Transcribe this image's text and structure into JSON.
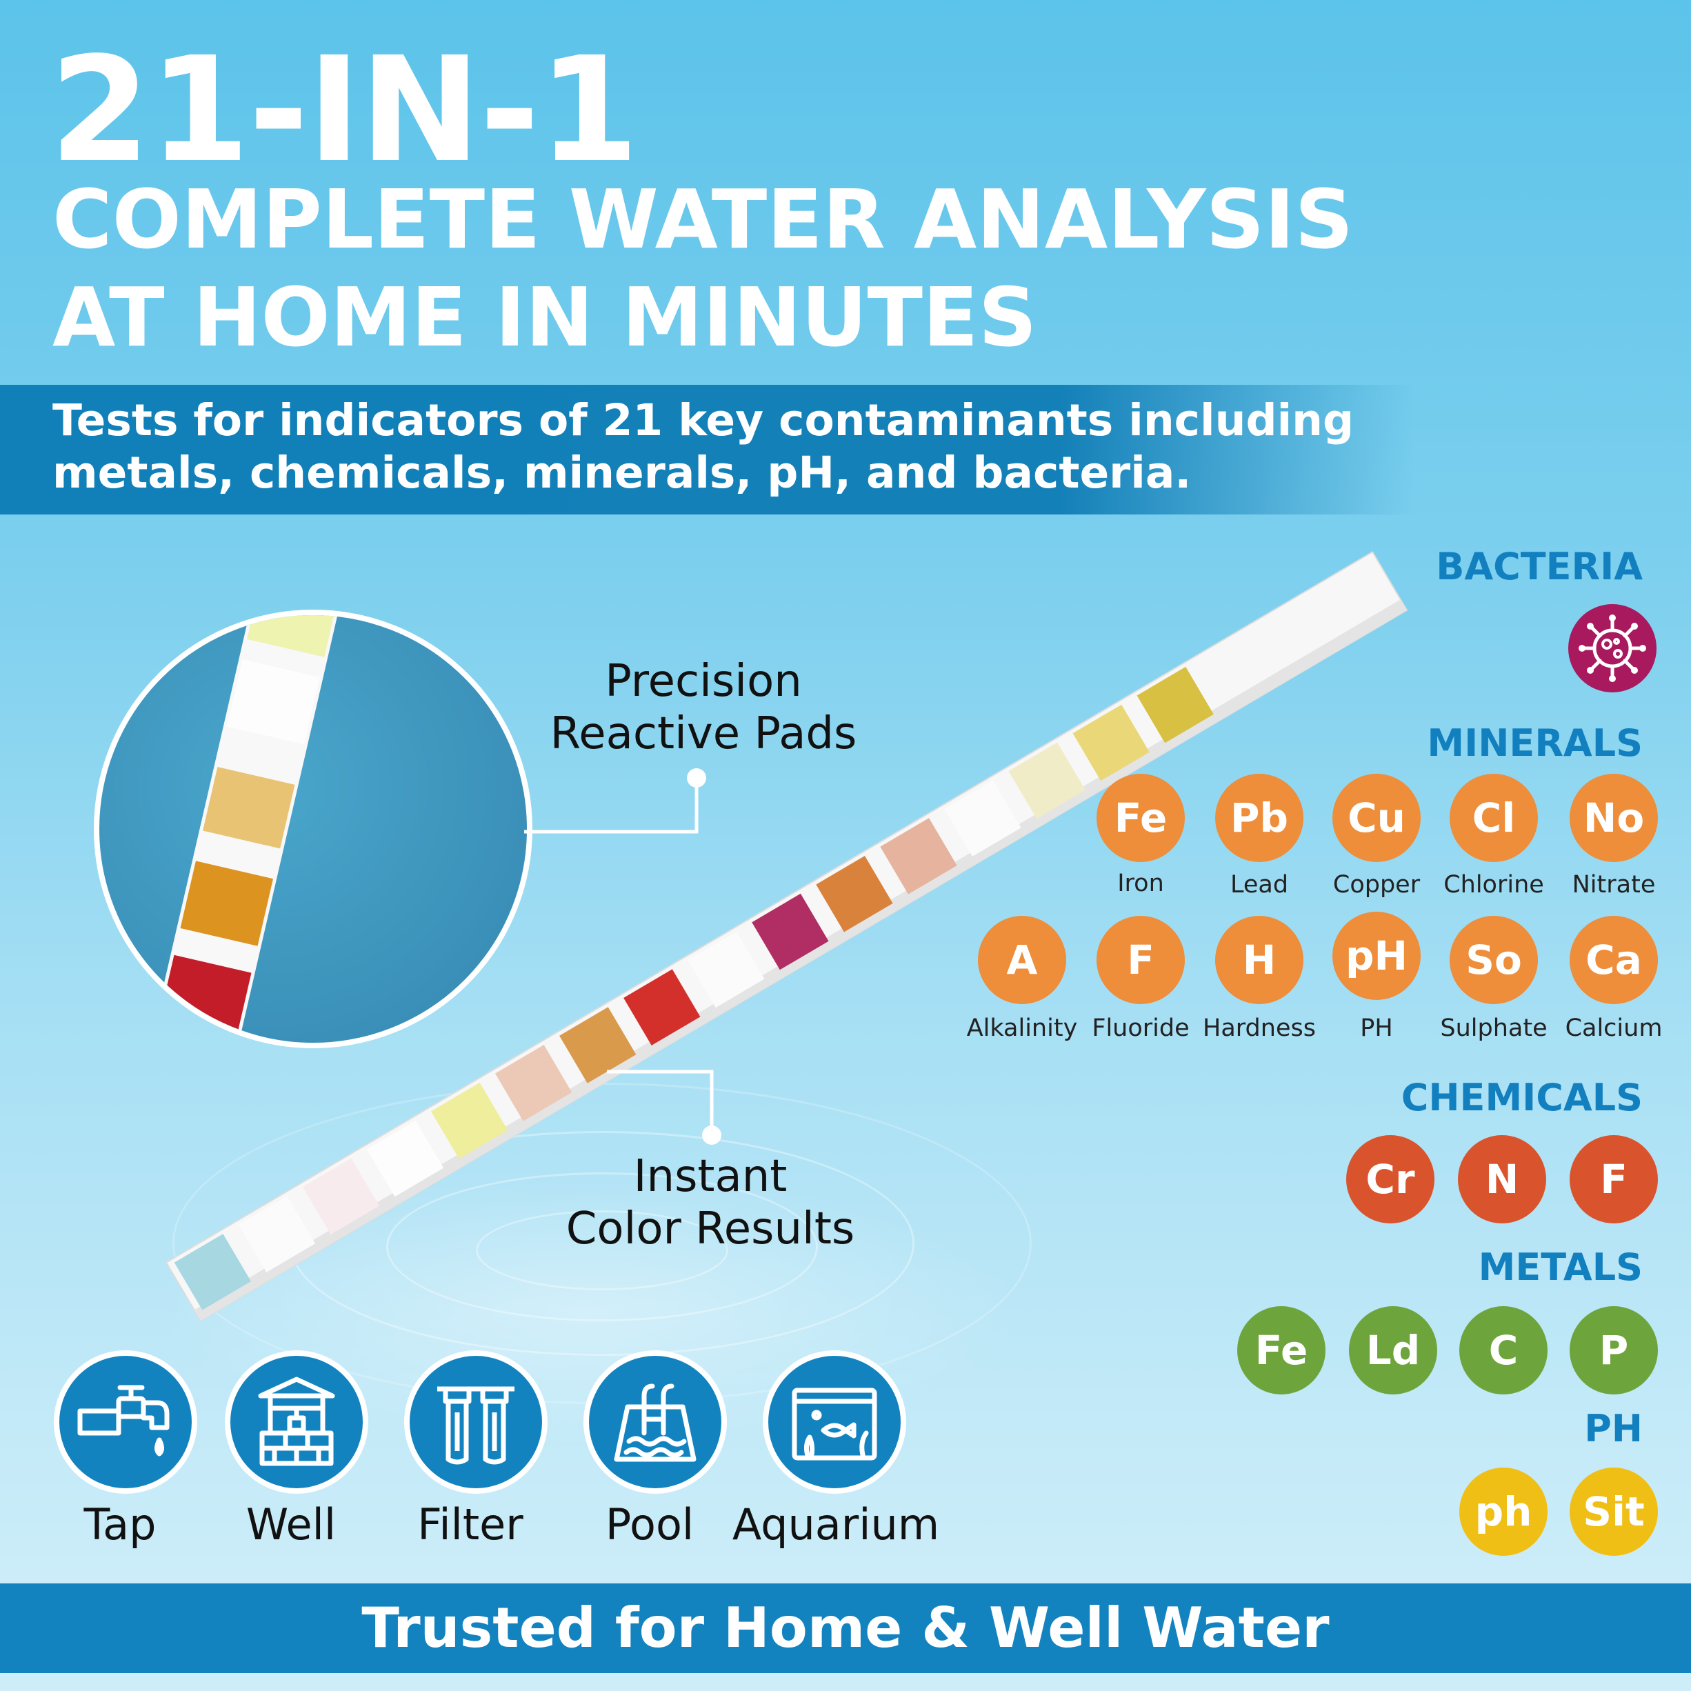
{
  "header": {
    "headline": "21-IN-1",
    "subline_1": "COMPLETE WATER ANALYSIS",
    "subline_2": "AT HOME IN MINUTES"
  },
  "banner": {
    "line_1": "Tests for indicators of 21 key contaminants including",
    "line_2": "metals, chemicals, minerals, pH, and bacteria."
  },
  "callouts": {
    "pads_line_1": "Precision",
    "pads_line_2": "Reactive Pads",
    "results_line_1": "Instant",
    "results_line_2": "Color Results"
  },
  "categories": {
    "bacteria": {
      "title": "BACTERIA",
      "icon": "virus-icon",
      "color": "#a8195e"
    },
    "minerals": {
      "title": "MINERALS",
      "color": "#ee8d3a",
      "items": [
        {
          "symbol": "Fe",
          "label": "Iron"
        },
        {
          "symbol": "Pb",
          "label": "Lead"
        },
        {
          "symbol": "Cu",
          "label": "Copper"
        },
        {
          "symbol": "Cl",
          "label": "Chlorine"
        },
        {
          "symbol": "No",
          "label": "Nitrate"
        },
        {
          "symbol": "A",
          "label": "Alkalinity"
        },
        {
          "symbol": "F",
          "label": "Fluoride"
        },
        {
          "symbol": "H",
          "label": "Hardness"
        },
        {
          "symbol": "pH",
          "label": "PH"
        },
        {
          "symbol": "So",
          "label": "Sulphate"
        },
        {
          "symbol": "Ca",
          "label": "Calcium"
        }
      ]
    },
    "chemicals": {
      "title": "CHEMICALS",
      "color": "#d9542c",
      "items": [
        {
          "symbol": "Cr"
        },
        {
          "symbol": "N"
        },
        {
          "symbol": "F"
        }
      ]
    },
    "metals": {
      "title": "METALS",
      "color": "#6da43c",
      "items": [
        {
          "symbol": "Fe"
        },
        {
          "symbol": "Ld"
        },
        {
          "symbol": "C"
        },
        {
          "symbol": "P"
        }
      ]
    },
    "ph": {
      "title": "PH",
      "color": "#f0bf16",
      "items": [
        {
          "symbol": "ph"
        },
        {
          "symbol": "Sit"
        }
      ]
    }
  },
  "sources": [
    {
      "label": "Tap",
      "icon": "faucet-icon"
    },
    {
      "label": "Well",
      "icon": "well-icon"
    },
    {
      "label": "Filter",
      "icon": "filter-icon"
    },
    {
      "label": "Pool",
      "icon": "pool-icon"
    },
    {
      "label": "Aquarium",
      "icon": "aquarium-icon"
    }
  ],
  "footer": {
    "text": "Trusted for Home & Well Water"
  }
}
